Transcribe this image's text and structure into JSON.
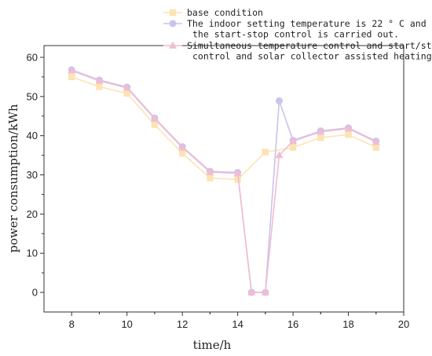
{
  "chart_data": {
    "type": "line",
    "xlabel": "time/h",
    "ylabel": "power consumption/kWh",
    "xlim": [
      7,
      20
    ],
    "ylim": [
      -5,
      63
    ],
    "xticks": [
      8,
      10,
      12,
      14,
      16,
      18,
      20
    ],
    "yticks": [
      0,
      10,
      20,
      30,
      40,
      50,
      60
    ],
    "grid": false,
    "legend_position": "top-right",
    "series": [
      {
        "name": "base condition",
        "color": "#fce3b4",
        "marker": "square",
        "x": [
          8,
          9,
          10,
          11,
          12,
          13,
          14,
          15,
          16,
          17,
          18,
          19
        ],
        "y": [
          55.0,
          52.5,
          50.8,
          42.8,
          35.5,
          29.2,
          28.8,
          35.8,
          37.0,
          39.5,
          40.3,
          37.0
        ]
      },
      {
        "name": "The indoor setting temperature is 22 ° C and\nthe start-stop control is carried out.",
        "color": "#c8c4ec",
        "marker": "circle",
        "x": [
          8,
          9,
          10,
          11,
          12,
          13,
          14,
          14.5,
          15,
          15.5,
          16,
          17,
          18,
          19
        ],
        "y": [
          56.8,
          54.2,
          52.4,
          44.5,
          37.2,
          30.9,
          30.6,
          0,
          0,
          48.9,
          38.8,
          41.2,
          42.0,
          38.6
        ]
      },
      {
        "name": "Simultaneous temperature control and start/stop\ncontrol and solar collector assisted heating",
        "color": "#f2bcd2",
        "marker": "triangle",
        "x": [
          8,
          9,
          10,
          11,
          12,
          13,
          14,
          14.5,
          15,
          15.5,
          16,
          17,
          18,
          19
        ],
        "y": [
          56.6,
          54.0,
          52.2,
          44.3,
          37.0,
          30.7,
          30.4,
          0,
          0,
          35.0,
          38.6,
          41.0,
          41.8,
          38.4
        ]
      }
    ]
  }
}
